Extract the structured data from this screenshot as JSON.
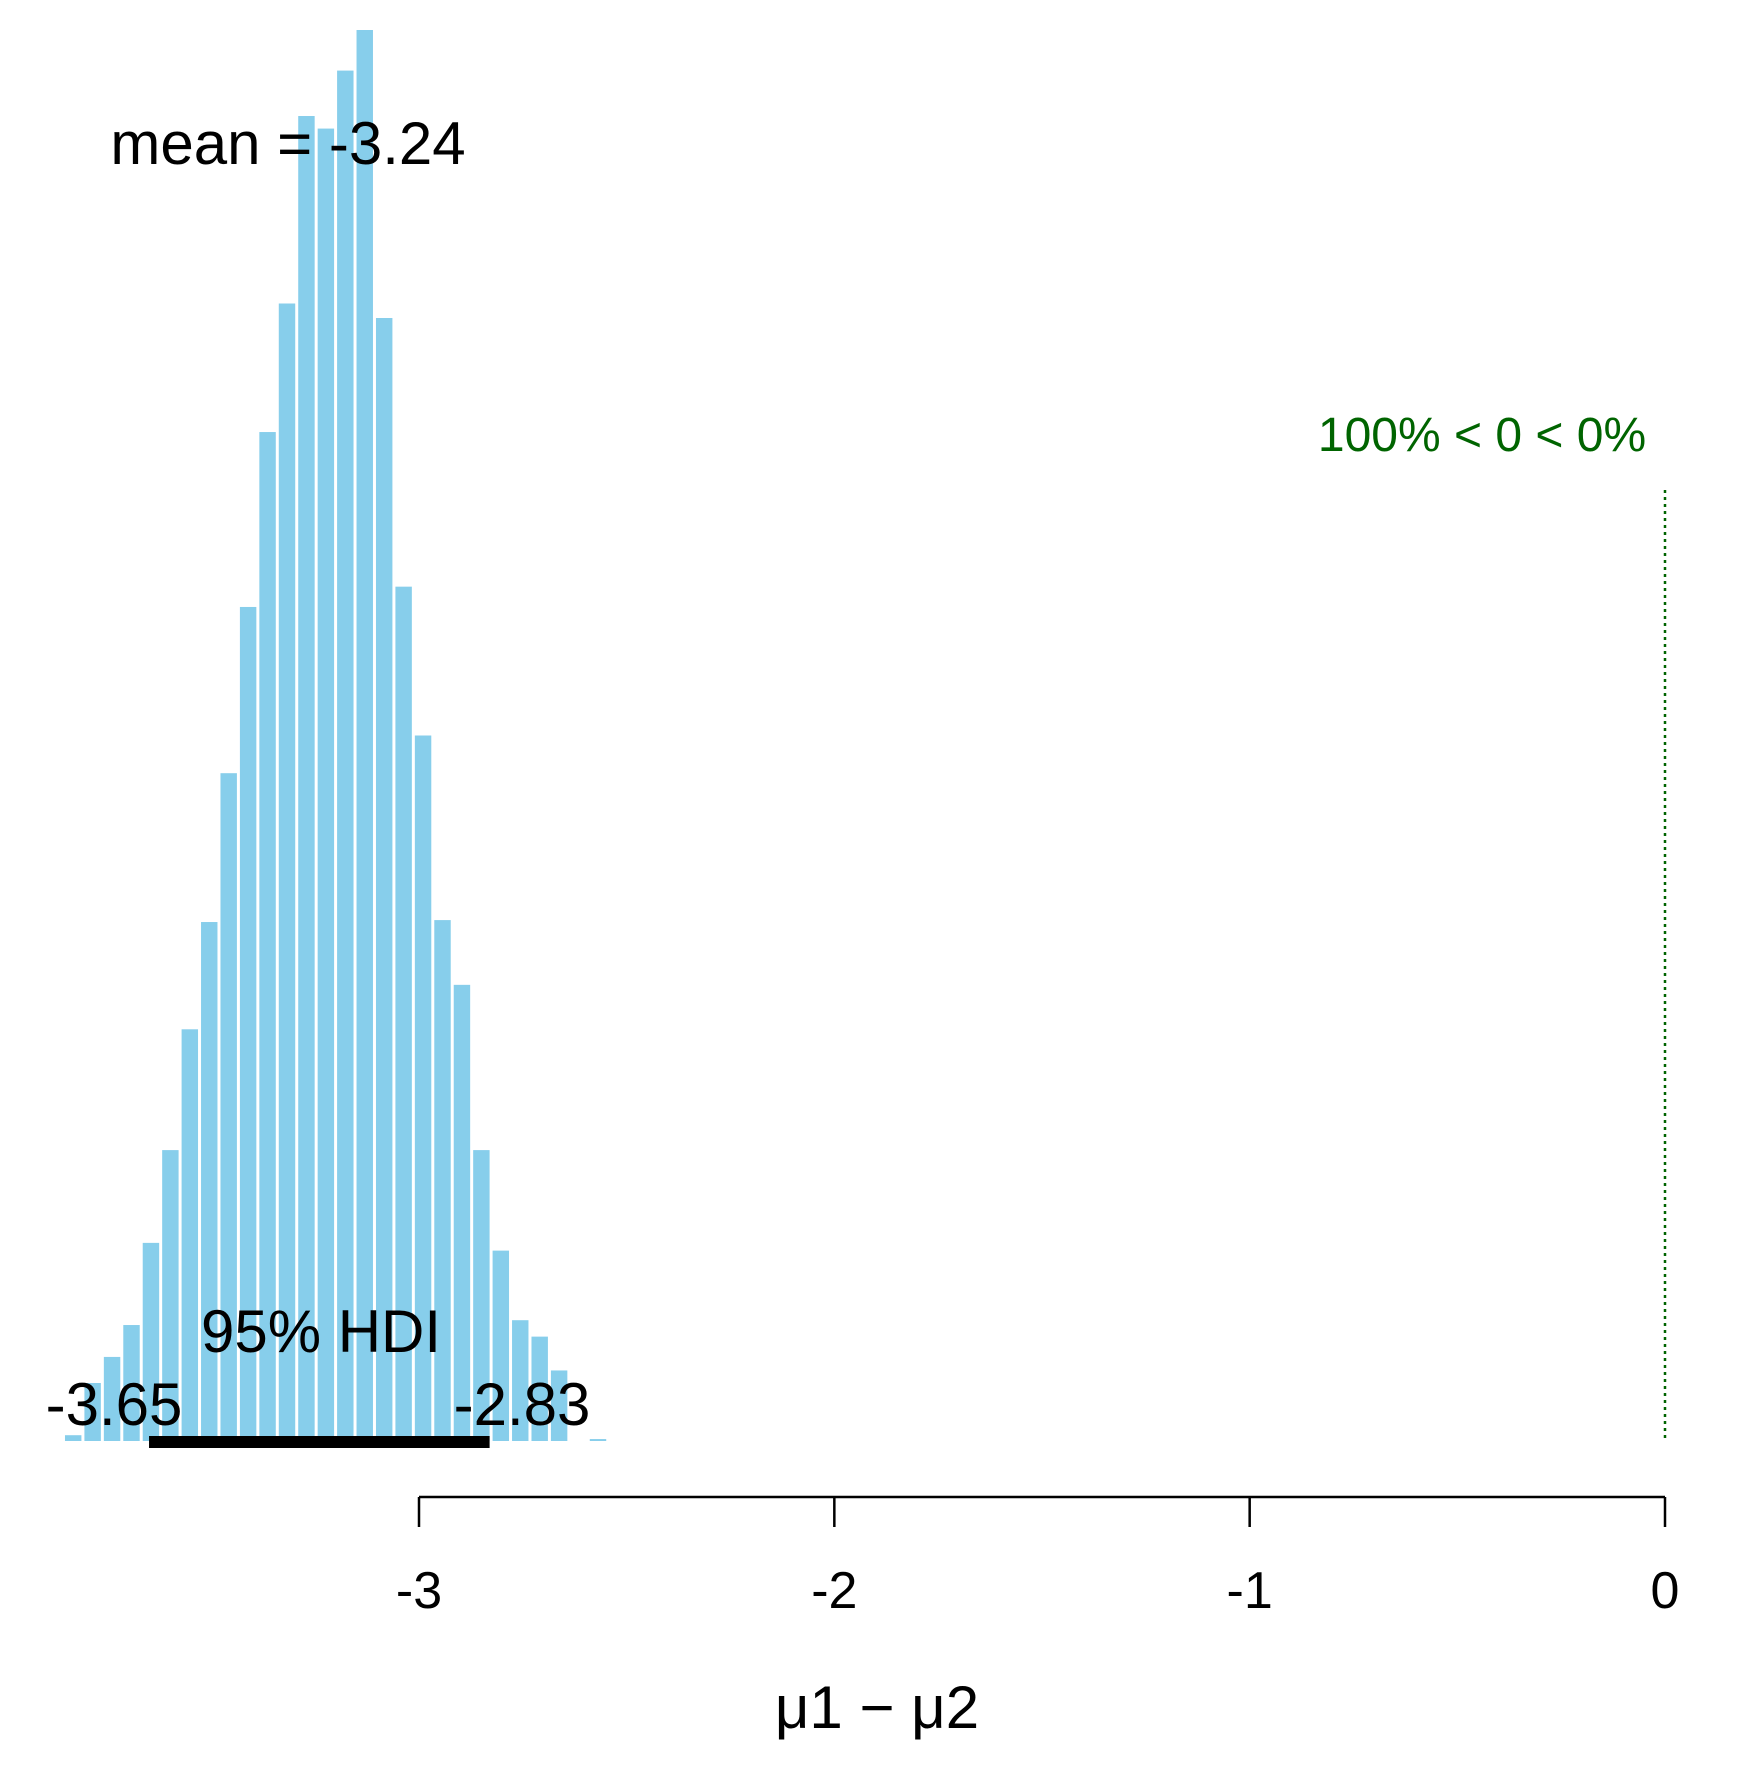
{
  "chart_data": {
    "type": "bar",
    "title": "",
    "xlabel": "μ1 − μ2",
    "ylabel": "",
    "xlim": [
      -3.9,
      0.05
    ],
    "x_ticks": [
      -3,
      -2,
      -1,
      0
    ],
    "grid": false,
    "bar_color": "#87CEEB",
    "bin_width": 0.0468,
    "bin_starts": [
      -3.8524,
      -3.8056,
      -3.7588,
      -3.712,
      -3.6652,
      -3.6184,
      -3.5716,
      -3.5248,
      -3.478,
      -3.4312,
      -3.3844,
      -3.3376,
      -3.2908,
      -3.244,
      -3.1972,
      -3.1504,
      -3.1036,
      -3.0568,
      -3.01,
      -2.9632,
      -2.9164,
      -2.8696,
      -2.8228,
      -2.776,
      -2.7292,
      -2.6824,
      -2.6356,
      -2.5888
    ],
    "densities": [
      0.06,
      0.6,
      0.87,
      1.2,
      2.05,
      3.01,
      4.26,
      5.37,
      6.91,
      8.63,
      10.44,
      11.77,
      13.71,
      13.58,
      14.18,
      14.6,
      11.62,
      8.84,
      7.3,
      5.39,
      4.72,
      3.01,
      1.97,
      1.25,
      1.08,
      0.73,
      0.0,
      0.02
    ],
    "ylim": [
      0,
      14.6
    ],
    "mean": {
      "value": -3.24,
      "label": "mean = -3.24"
    },
    "hdi": {
      "label": "95% HDI",
      "low": -3.65,
      "high": -2.83,
      "low_label": "-3.65",
      "high_label": "-2.83",
      "color": "#000000"
    },
    "comparison": {
      "value": 0,
      "label": "100% < 0 < 0%",
      "color": "#006400"
    }
  }
}
